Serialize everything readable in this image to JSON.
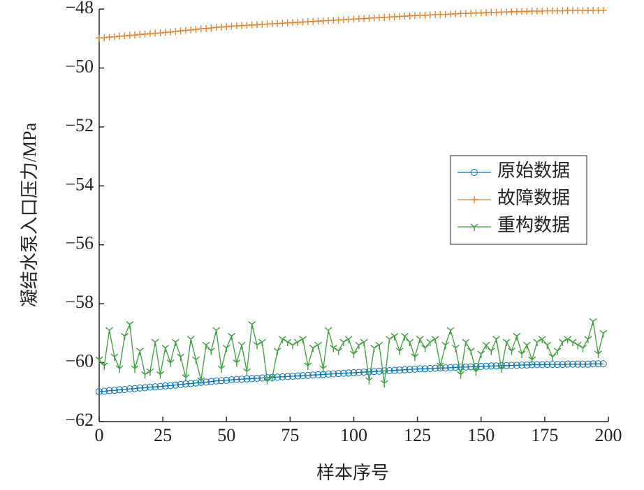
{
  "chart_data": {
    "type": "line",
    "x_label": "样本序号",
    "y_label": "凝结水泵入口压力/MPa",
    "x": [
      0,
      2,
      4,
      6,
      8,
      10,
      12,
      14,
      16,
      18,
      20,
      22,
      24,
      26,
      28,
      30,
      32,
      34,
      36,
      38,
      40,
      42,
      44,
      46,
      48,
      50,
      52,
      54,
      56,
      58,
      60,
      62,
      64,
      66,
      68,
      70,
      72,
      74,
      76,
      78,
      80,
      82,
      84,
      86,
      88,
      90,
      92,
      94,
      96,
      98,
      100,
      102,
      104,
      106,
      108,
      110,
      112,
      114,
      116,
      118,
      120,
      122,
      124,
      126,
      128,
      130,
      132,
      134,
      136,
      138,
      140,
      142,
      144,
      146,
      148,
      150,
      152,
      154,
      156,
      158,
      160,
      162,
      164,
      166,
      168,
      170,
      172,
      174,
      176,
      178,
      180,
      182,
      184,
      186,
      188,
      190,
      192,
      194,
      196,
      198
    ],
    "series": [
      {
        "name": "原始数据",
        "color": "#0072bd",
        "marker": "o",
        "values": [
          -60.98,
          -60.97,
          -60.95,
          -60.94,
          -60.92,
          -60.91,
          -60.89,
          -60.88,
          -60.86,
          -60.85,
          -60.83,
          -60.82,
          -60.81,
          -60.79,
          -60.78,
          -60.76,
          -60.74,
          -60.72,
          -60.71,
          -60.69,
          -60.67,
          -60.66,
          -60.64,
          -60.62,
          -60.61,
          -60.6,
          -60.58,
          -60.57,
          -60.56,
          -60.55,
          -60.54,
          -60.53,
          -60.52,
          -60.51,
          -60.5,
          -60.49,
          -60.48,
          -60.47,
          -60.46,
          -60.45,
          -60.44,
          -60.43,
          -60.42,
          -60.41,
          -60.4,
          -60.39,
          -60.38,
          -60.37,
          -60.36,
          -60.35,
          -60.34,
          -60.33,
          -60.32,
          -60.31,
          -60.3,
          -60.29,
          -60.28,
          -60.27,
          -60.26,
          -60.25,
          -60.24,
          -60.23,
          -60.22,
          -60.21,
          -60.21,
          -60.2,
          -60.19,
          -60.18,
          -60.18,
          -60.17,
          -60.16,
          -60.15,
          -60.15,
          -60.14,
          -60.13,
          -60.13,
          -60.12,
          -60.11,
          -60.11,
          -60.1,
          -60.1,
          -60.09,
          -60.09,
          -60.08,
          -60.08,
          -60.07,
          -60.07,
          -60.07,
          -60.06,
          -60.06,
          -60.06,
          -60.06,
          -60.05,
          -60.05,
          -60.05,
          -60.05,
          -60.05,
          -60.04,
          -60.04,
          -60.04
        ]
      },
      {
        "name": "故障数据",
        "color": "#e8822a",
        "marker": "+",
        "values": [
          -48.98,
          -48.97,
          -48.95,
          -48.94,
          -48.92,
          -48.91,
          -48.89,
          -48.88,
          -48.86,
          -48.85,
          -48.83,
          -48.82,
          -48.81,
          -48.79,
          -48.78,
          -48.76,
          -48.74,
          -48.72,
          -48.71,
          -48.69,
          -48.67,
          -48.66,
          -48.64,
          -48.62,
          -48.61,
          -48.6,
          -48.58,
          -48.57,
          -48.56,
          -48.55,
          -48.54,
          -48.53,
          -48.52,
          -48.51,
          -48.5,
          -48.49,
          -48.48,
          -48.47,
          -48.46,
          -48.45,
          -48.44,
          -48.43,
          -48.42,
          -48.41,
          -48.4,
          -48.39,
          -48.38,
          -48.37,
          -48.36,
          -48.35,
          -48.34,
          -48.33,
          -48.32,
          -48.31,
          -48.3,
          -48.29,
          -48.28,
          -48.27,
          -48.26,
          -48.25,
          -48.24,
          -48.23,
          -48.22,
          -48.21,
          -48.21,
          -48.2,
          -48.19,
          -48.18,
          -48.18,
          -48.17,
          -48.16,
          -48.15,
          -48.15,
          -48.14,
          -48.13,
          -48.13,
          -48.12,
          -48.11,
          -48.11,
          -48.1,
          -48.1,
          -48.09,
          -48.09,
          -48.08,
          -48.08,
          -48.07,
          -48.07,
          -48.07,
          -48.06,
          -48.06,
          -48.06,
          -48.06,
          -48.05,
          -48.05,
          -48.05,
          -48.05,
          -48.05,
          -48.04,
          -48.04,
          -48.04
        ]
      },
      {
        "name": "重构数据",
        "color": "#3a9e3a",
        "marker": "1",
        "values": [
          -59.9,
          -60.1,
          -58.9,
          -59.8,
          -60.2,
          -59.1,
          -58.7,
          -60.2,
          -59.6,
          -60.4,
          -60.3,
          -59.3,
          -60.4,
          -59.5,
          -60.0,
          -59.3,
          -59.8,
          -60.5,
          -59.2,
          -59.9,
          -60.6,
          -59.4,
          -59.6,
          -58.9,
          -60.2,
          -59.5,
          -59.1,
          -60.0,
          -59.4,
          -60.3,
          -58.7,
          -59.4,
          -59.3,
          -60.6,
          -60.5,
          -59.6,
          -59.2,
          -59.3,
          -59.4,
          -59.3,
          -59.2,
          -60.1,
          -59.5,
          -59.4,
          -60.2,
          -58.9,
          -59.5,
          -59.6,
          -59.3,
          -59.2,
          -59.7,
          -59.4,
          -59.3,
          -60.6,
          -59.5,
          -59.4,
          -60.7,
          -59.2,
          -59.1,
          -59.6,
          -59.1,
          -59.3,
          -59.8,
          -59.2,
          -59.5,
          -59.3,
          -59.2,
          -60.1,
          -59.4,
          -58.9,
          -59.5,
          -60.4,
          -59.3,
          -59.6,
          -60.3,
          -59.7,
          -59.4,
          -59.6,
          -59.2,
          -60.2,
          -59.3,
          -59.6,
          -59.1,
          -59.7,
          -59.4,
          -59.9,
          -59.3,
          -59.2,
          -59.4,
          -59.8,
          -59.6,
          -59.3,
          -59.2,
          -59.3,
          -59.4,
          -59.5,
          -59.2,
          -58.6,
          -59.7,
          -59.0
        ]
      }
    ],
    "xlim": [
      0,
      200
    ],
    "xticks": [
      0,
      25,
      50,
      75,
      100,
      125,
      150,
      175,
      200
    ],
    "ylim": [
      -62,
      -48
    ],
    "yticks": [
      {
        "value": -62,
        "label": "−62"
      },
      {
        "value": -60,
        "label": "−60"
      },
      {
        "value": -58,
        "label": "−58"
      },
      {
        "value": -56,
        "label": "−56"
      },
      {
        "value": -54,
        "label": "−54"
      },
      {
        "value": -52,
        "label": "−52"
      },
      {
        "value": -50,
        "label": "−50"
      },
      {
        "value": -48,
        "label": "−48"
      }
    ],
    "grid": false,
    "legend": "east"
  }
}
